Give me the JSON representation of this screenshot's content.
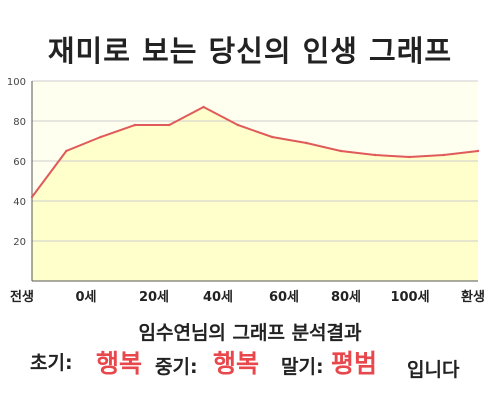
{
  "title": "재미로 보는 당신의 인생 그래프",
  "chart_data": {
    "type": "area",
    "x_tick_labels": [
      "전생",
      "0세",
      "20세",
      "40세",
      "60세",
      "80세",
      "100세",
      "환생"
    ],
    "x": [
      "전생",
      "0세",
      "",
      "20세",
      "",
      "40세",
      "",
      "",
      "",
      "80세",
      "",
      "100세",
      "",
      "환생"
    ],
    "values": [
      42,
      65,
      72,
      78,
      78,
      87,
      78,
      72,
      69,
      65,
      63,
      62,
      63,
      65
    ],
    "y_ticks": [
      20,
      40,
      60,
      80,
      100
    ],
    "ylim": [
      0,
      100
    ],
    "grid": true,
    "colors": {
      "line": "#e05a5a",
      "fill": "#ffffcc",
      "plot_bg": "#fffff0",
      "grid": "#cccccc"
    }
  },
  "summary": {
    "text": "임수연님의 그래프 분석결과",
    "early_label": "초기:",
    "early_value": "행복",
    "mid_label": "중기:",
    "mid_value": "행복",
    "late_label": "말기:",
    "late_value": "평범",
    "closing": "입니다"
  }
}
